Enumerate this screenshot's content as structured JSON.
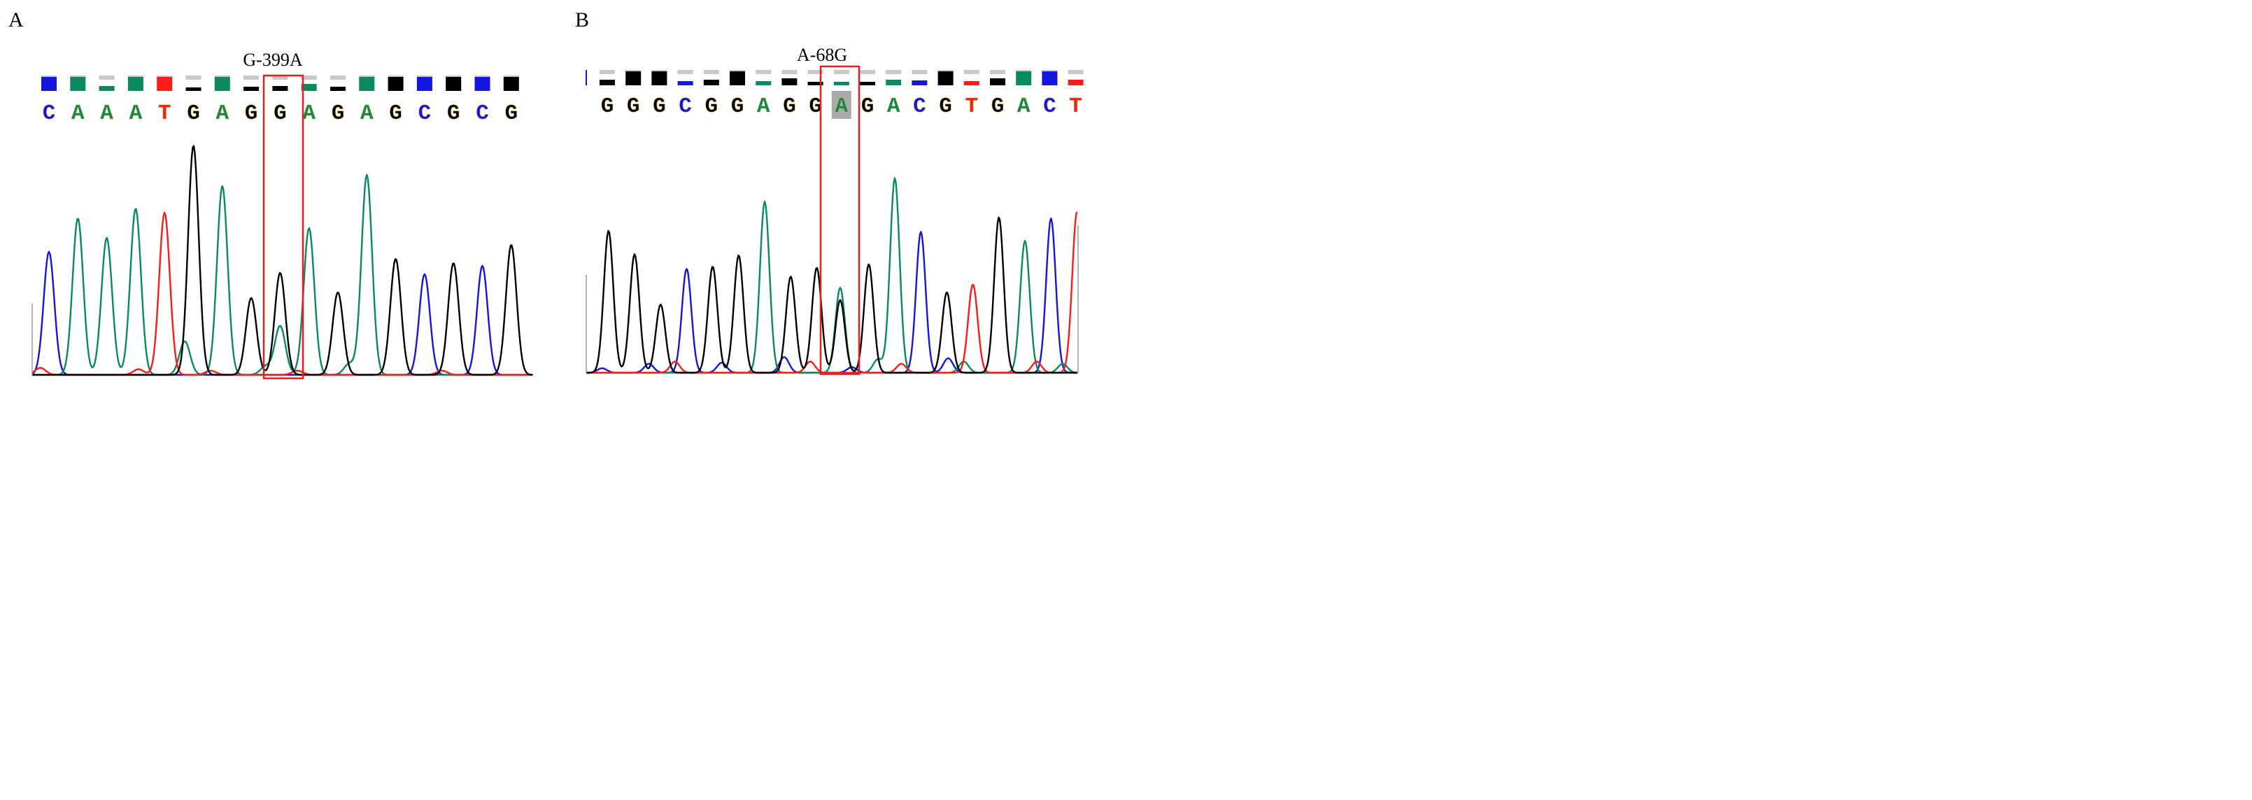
{
  "colors": {
    "A": "#0a8a5c",
    "C": "#1515e0",
    "G": "#000000",
    "T": "#ff1a1a",
    "box": "#e81e1e",
    "highlight": "#aaaaaa",
    "quality": "#c8c8c8"
  },
  "panels": [
    {
      "label": "A",
      "mutation": "G-399A",
      "sequence": [
        "C",
        "A",
        "A",
        "A",
        "T",
        "G",
        "A",
        "G",
        "G",
        "A",
        "G",
        "A",
        "G",
        "C",
        "G",
        "C",
        "G"
      ],
      "quality": [
        1,
        1,
        0.35,
        1,
        1,
        0.25,
        1,
        0.3,
        0.35,
        0.5,
        0.3,
        1,
        1,
        1,
        1,
        1,
        1
      ],
      "highlight_index": -1,
      "boxed_index": 8,
      "peaks": [
        {
          "pos": 0.4,
          "base": "C",
          "h": 0.88
        },
        {
          "pos": 1.4,
          "base": "A",
          "h": 1.12
        },
        {
          "pos": 2.4,
          "base": "A",
          "h": 0.98
        },
        {
          "pos": 3.4,
          "base": "A",
          "h": 1.19
        },
        {
          "pos": 4.4,
          "base": "T",
          "h": 1.16
        },
        {
          "pos": 5.4,
          "base": "G",
          "h": 1.64
        },
        {
          "pos": 6.4,
          "base": "A",
          "h": 1.35
        },
        {
          "pos": 7.4,
          "base": "G",
          "h": 0.55
        },
        {
          "pos": 8.4,
          "base": "G",
          "h": 0.73
        },
        {
          "pos": 8.4,
          "base": "A",
          "h": 0.35
        },
        {
          "pos": 9.4,
          "base": "A",
          "h": 1.05
        },
        {
          "pos": 10.4,
          "base": "G",
          "h": 0.59
        },
        {
          "pos": 11.4,
          "base": "A",
          "h": 1.43
        },
        {
          "pos": 12.4,
          "base": "G",
          "h": 0.83
        },
        {
          "pos": 13.4,
          "base": "C",
          "h": 0.72
        },
        {
          "pos": 14.4,
          "base": "G",
          "h": 0.8
        },
        {
          "pos": 15.4,
          "base": "C",
          "h": 0.78
        },
        {
          "pos": 16.4,
          "base": "G",
          "h": 0.93
        }
      ],
      "noise": [
        {
          "pos": 0.1,
          "base": "T",
          "h": 0.05
        },
        {
          "pos": 3.5,
          "base": "T",
          "h": 0.04
        },
        {
          "pos": 5.1,
          "base": "A",
          "h": 0.24
        },
        {
          "pos": 6.0,
          "base": "T",
          "h": 0.03
        },
        {
          "pos": 7.9,
          "base": "A",
          "h": 0.06
        },
        {
          "pos": 9.0,
          "base": "T",
          "h": 0.03
        },
        {
          "pos": 10.8,
          "base": "A",
          "h": 0.08
        },
        {
          "pos": 14.0,
          "base": "T",
          "h": 0.03
        }
      ]
    },
    {
      "label": "B",
      "mutation": "A-68G",
      "sequence": [
        "G",
        "G",
        "G",
        "C",
        "G",
        "G",
        "A",
        "G",
        "G",
        "A",
        "G",
        "A",
        "C",
        "G",
        "T",
        "G",
        "A",
        "C",
        "T"
      ],
      "quality": [
        0.4,
        1,
        1,
        0.3,
        0.4,
        1,
        0.3,
        0.5,
        0.2,
        0.25,
        0.15,
        0.4,
        0.35,
        1,
        0.3,
        0.5,
        1,
        1,
        0.4
      ],
      "highlight_index": 9,
      "boxed_index": 9,
      "peaks": [
        {
          "pos": 0.45,
          "base": "G",
          "h": 1.27
        },
        {
          "pos": 1.45,
          "base": "G",
          "h": 1.06
        },
        {
          "pos": 2.45,
          "base": "G",
          "h": 0.61
        },
        {
          "pos": 3.45,
          "base": "C",
          "h": 0.93
        },
        {
          "pos": 4.45,
          "base": "G",
          "h": 0.95
        },
        {
          "pos": 5.45,
          "base": "G",
          "h": 1.05
        },
        {
          "pos": 6.45,
          "base": "A",
          "h": 1.53
        },
        {
          "pos": 7.45,
          "base": "G",
          "h": 0.86
        },
        {
          "pos": 8.45,
          "base": "G",
          "h": 0.94
        },
        {
          "pos": 9.35,
          "base": "A",
          "h": 0.76
        },
        {
          "pos": 9.35,
          "base": "G",
          "h": 0.65
        },
        {
          "pos": 10.45,
          "base": "G",
          "h": 0.97
        },
        {
          "pos": 11.45,
          "base": "A",
          "h": 1.74
        },
        {
          "pos": 12.45,
          "base": "C",
          "h": 1.26
        },
        {
          "pos": 13.45,
          "base": "G",
          "h": 0.72
        },
        {
          "pos": 14.45,
          "base": "T",
          "h": 0.79
        },
        {
          "pos": 15.45,
          "base": "G",
          "h": 1.39
        },
        {
          "pos": 16.45,
          "base": "A",
          "h": 1.18
        },
        {
          "pos": 17.45,
          "base": "C",
          "h": 1.38
        },
        {
          "pos": 18.45,
          "base": "T",
          "h": 1.44
        }
      ],
      "noise": [
        {
          "pos": 0.2,
          "base": "C",
          "h": 0.04
        },
        {
          "pos": 2.0,
          "base": "C",
          "h": 0.08
        },
        {
          "pos": 3.0,
          "base": "T",
          "h": 0.1
        },
        {
          "pos": 4.8,
          "base": "C",
          "h": 0.09
        },
        {
          "pos": 7.2,
          "base": "C",
          "h": 0.14
        },
        {
          "pos": 8.2,
          "base": "T",
          "h": 0.1
        },
        {
          "pos": 9.8,
          "base": "C",
          "h": 0.05
        },
        {
          "pos": 10.8,
          "base": "A",
          "h": 0.12
        },
        {
          "pos": 11.7,
          "base": "T",
          "h": 0.08
        },
        {
          "pos": 13.5,
          "base": "C",
          "h": 0.13
        },
        {
          "pos": 14.1,
          "base": "A",
          "h": 0.1
        },
        {
          "pos": 16.9,
          "base": "T",
          "h": 0.1
        },
        {
          "pos": 17.9,
          "base": "A",
          "h": 0.08
        }
      ]
    }
  ]
}
